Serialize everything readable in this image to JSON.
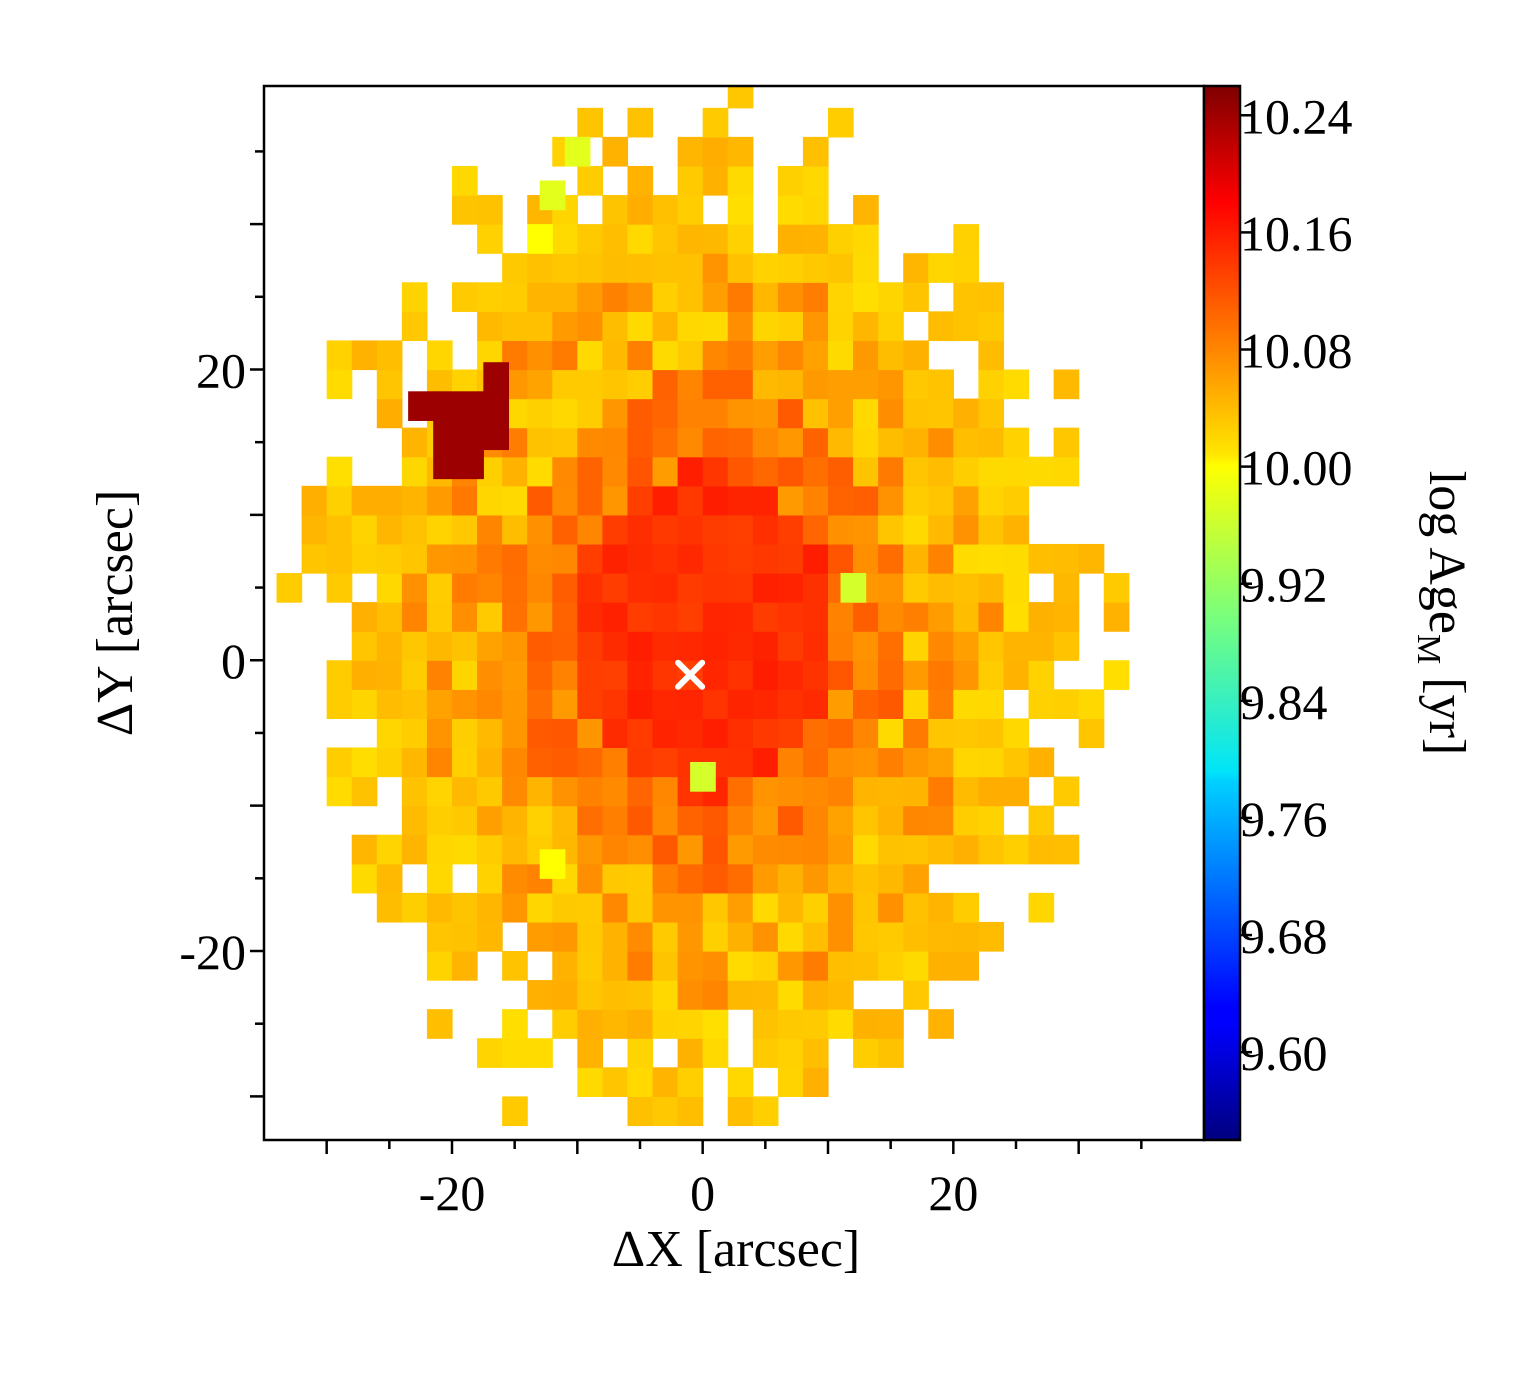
{
  "chart_data": {
    "type": "heatmap",
    "title": "",
    "xlabel": "ΔX [arcsec]",
    "ylabel": "ΔY [arcsec]",
    "xlim": [
      -35,
      40
    ],
    "ylim": [
      -33,
      39.5
    ],
    "x_ticks": [
      -20,
      0,
      20
    ],
    "x_tick_labels": [
      "-20",
      "0",
      "20"
    ],
    "y_ticks": [
      -20,
      0,
      20
    ],
    "y_tick_labels": [
      "-20",
      "0",
      "20"
    ],
    "pixel_size_arcsec": 2,
    "colormap": "jet",
    "colorbar": {
      "label": "log Age",
      "label_subscript": "M",
      "label_units": " [yr]",
      "range": [
        9.54,
        10.26
      ],
      "ticks": [
        10.24,
        10.16,
        10.08,
        10.0,
        9.92,
        9.84,
        9.76,
        9.68,
        9.6
      ],
      "tick_labels": [
        "10.24",
        "10.16",
        "10.08",
        "10.00",
        "9.92",
        "9.84",
        "9.76",
        "9.68",
        "9.60"
      ]
    },
    "map_summary": {
      "center_value": 10.15,
      "inner_ring_value": 10.1,
      "middle_ring_value": 10.07,
      "outskirts_value": 10.03,
      "outer_semi_axes_arcsec": [
        31,
        34
      ],
      "old_clump": {
        "x": -18.5,
        "y": 15.5,
        "value": 10.24
      },
      "young_pixels": [
        {
          "x": -10,
          "y": 35,
          "value": 9.97
        },
        {
          "x": -12,
          "y": 32,
          "value": 9.97
        },
        {
          "x": -13,
          "y": 29,
          "value": 9.99
        },
        {
          "x": 12,
          "y": 5,
          "value": 9.96
        },
        {
          "x": 0,
          "y": -8,
          "value": 9.96
        },
        {
          "x": -12,
          "y": -14,
          "value": 9.99
        }
      ]
    },
    "center_marker": {
      "x": -1,
      "y": -1,
      "symbol": "×",
      "color": "#ffffff"
    }
  }
}
